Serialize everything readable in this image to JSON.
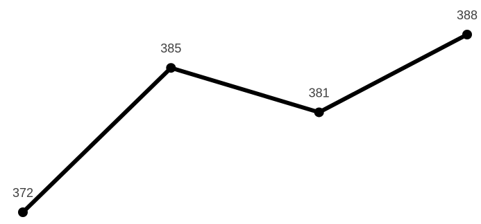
{
  "chart_data": {
    "type": "line",
    "categories": [
      "",
      "",
      "",
      ""
    ],
    "series": [
      {
        "values": [
          372,
          385,
          381,
          388
        ]
      }
    ],
    "data_labels": [
      "372",
      "385",
      "381",
      "388"
    ],
    "title": "",
    "xlabel": "",
    "ylabel": "",
    "grid": false,
    "legend": "none",
    "line_color": "#000000",
    "label_color": "#404040"
  }
}
